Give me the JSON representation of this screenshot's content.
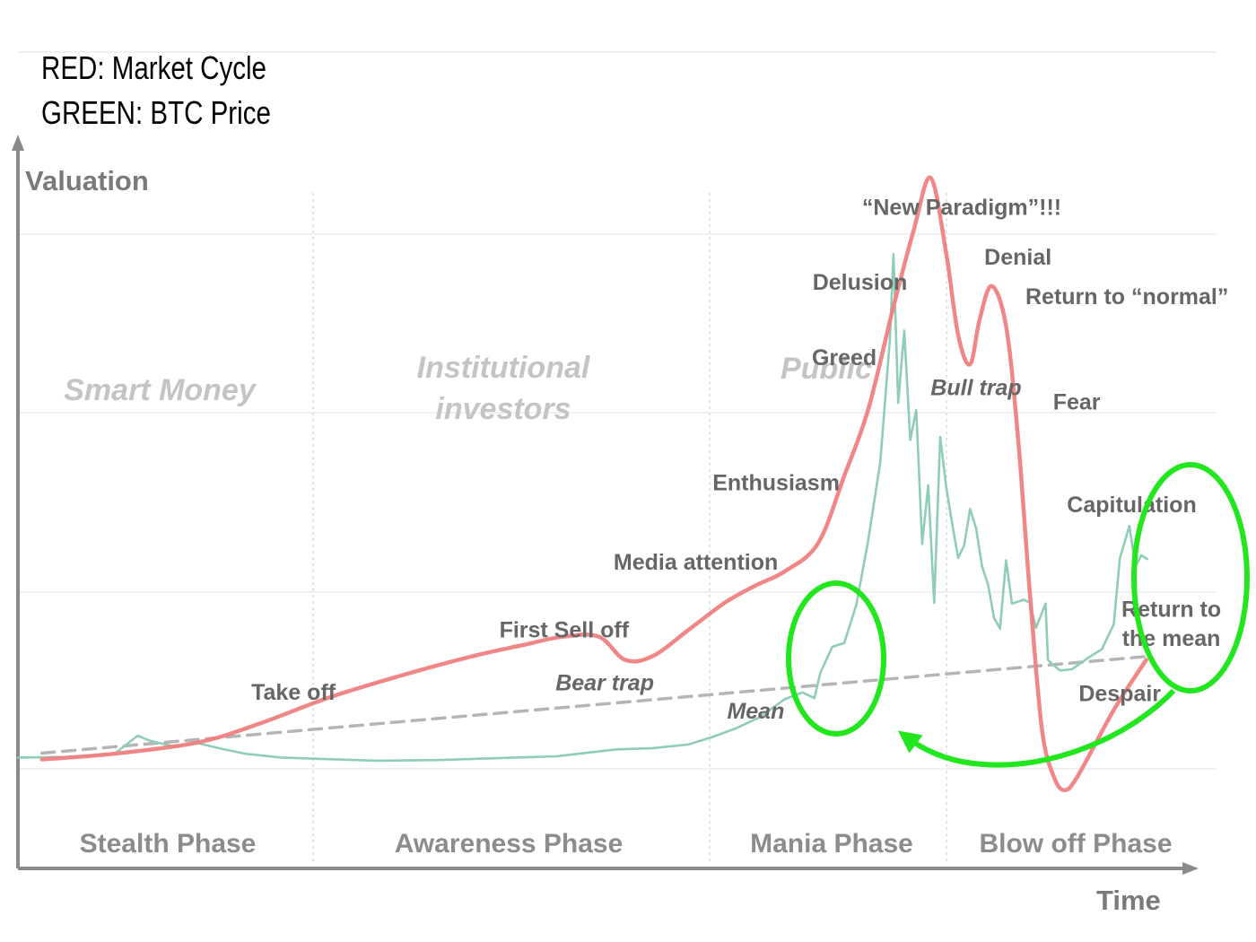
{
  "legend": {
    "red": "RED: Market Cycle",
    "green": "GREEN: BTC Price"
  },
  "chart_data": {
    "type": "line",
    "title": "",
    "ylabel": "Valuation",
    "xlabel": "Time",
    "x_range": [
      0,
      100
    ],
    "y_range": [
      0,
      100
    ],
    "grid": true,
    "colors": {
      "market_cycle": "#f08080",
      "btc_price": "#8fcdb6",
      "mean_trend": "#b5b5b5",
      "highlight": "#22e61e",
      "axis": "#8a8a8a"
    },
    "phases": [
      "Stealth Phase",
      "Awareness Phase",
      "Mania Phase",
      "Blow off Phase"
    ],
    "groups": [
      "Smart Money",
      "Institutional",
      "investors",
      "Public"
    ],
    "annotations": [
      {
        "text": "Take off",
        "x": 23,
        "y": 10,
        "italic": false
      },
      {
        "text": "First Sell off",
        "x": 45.6,
        "y": 20,
        "italic": false
      },
      {
        "text": "Bear trap",
        "x": 49,
        "y": 11.5,
        "italic": true
      },
      {
        "text": "Media attention",
        "x": 56.6,
        "y": 30.8,
        "italic": false
      },
      {
        "text": "Mean",
        "x": 61.6,
        "y": 7,
        "italic": true
      },
      {
        "text": "Enthusiasm",
        "x": 63.3,
        "y": 43.5,
        "italic": false
      },
      {
        "text": "Greed",
        "x": 69,
        "y": 63.5,
        "italic": false
      },
      {
        "text": "Delusion",
        "x": 70.3,
        "y": 75.5,
        "italic": false
      },
      {
        "text": "“New Paradigm”!!!",
        "x": 78.8,
        "y": 87.5,
        "italic": false
      },
      {
        "text": "Denial",
        "x": 83.5,
        "y": 79.5,
        "italic": false
      },
      {
        "text": "Return to “normal”",
        "x": 92.6,
        "y": 73.2,
        "italic": false
      },
      {
        "text": "Bull trap",
        "x": 80,
        "y": 58.7,
        "italic": true
      },
      {
        "text": "Fear",
        "x": 88.4,
        "y": 56.4,
        "italic": false
      },
      {
        "text": "Capitulation",
        "x": 93,
        "y": 40,
        "italic": false
      },
      {
        "text": "Return to",
        "x": 96.3,
        "y": 23.3,
        "italic": false
      },
      {
        "text": "the mean",
        "x": 96.3,
        "y": 18.6,
        "italic": false
      },
      {
        "text": "Despair",
        "x": 92,
        "y": 9.8,
        "italic": false
      }
    ],
    "series": [
      {
        "name": "Market Cycle",
        "key": "market_cycle",
        "points": [
          [
            2,
            0.5
          ],
          [
            8,
            1.4
          ],
          [
            15,
            3.2
          ],
          [
            20,
            6.1
          ],
          [
            26,
            10.4
          ],
          [
            32,
            13.9
          ],
          [
            38,
            17
          ],
          [
            42,
            18.7
          ],
          [
            45.5,
            20.1
          ],
          [
            48.5,
            20.1
          ],
          [
            50.7,
            16.4
          ],
          [
            53,
            17
          ],
          [
            56,
            21.2
          ],
          [
            59,
            25.5
          ],
          [
            61.5,
            28.2
          ],
          [
            64,
            30.5
          ],
          [
            66.8,
            35
          ],
          [
            69,
            45.8
          ],
          [
            71,
            56.4
          ],
          [
            73,
            72
          ],
          [
            74.8,
            85.1
          ],
          [
            76.2,
            93.4
          ],
          [
            77.5,
            81.4
          ],
          [
            78.5,
            68.3
          ],
          [
            79.5,
            63.6
          ],
          [
            80.3,
            70.8
          ],
          [
            81.3,
            76.1
          ],
          [
            82.5,
            69.7
          ],
          [
            83.5,
            51.9
          ],
          [
            84.5,
            26.8
          ],
          [
            85.5,
            5.3
          ],
          [
            86.5,
            -2.3
          ],
          [
            87.4,
            -4.4
          ],
          [
            88.5,
            -2.1
          ],
          [
            91.5,
            8.4
          ],
          [
            94.2,
            16.4
          ]
        ]
      },
      {
        "name": "BTC Price",
        "key": "btc_price",
        "points": [
          [
            0,
            0.8
          ],
          [
            4,
            0.9
          ],
          [
            8,
            1.3
          ],
          [
            10,
            4.3
          ],
          [
            11,
            3.5
          ],
          [
            13,
            2.6
          ],
          [
            15,
            3.1
          ],
          [
            17,
            2.2
          ],
          [
            19,
            1.4
          ],
          [
            22,
            0.8
          ],
          [
            25,
            0.6
          ],
          [
            30,
            0.3
          ],
          [
            35,
            0.4
          ],
          [
            40,
            0.7
          ],
          [
            45,
            1
          ],
          [
            50,
            2.1
          ],
          [
            53,
            2.3
          ],
          [
            56,
            2.9
          ],
          [
            58,
            4.1
          ],
          [
            60,
            5.5
          ],
          [
            62,
            7.3
          ],
          [
            64,
            10.1
          ],
          [
            65.5,
            11.2
          ],
          [
            66.5,
            10.3
          ],
          [
            67,
            14.4
          ],
          [
            68,
            18.5
          ],
          [
            69,
            19.1
          ],
          [
            70,
            25.2
          ],
          [
            71,
            35.5
          ],
          [
            72,
            48
          ],
          [
            72.8,
            67.5
          ],
          [
            73.1,
            81.2
          ],
          [
            73.5,
            57.4
          ],
          [
            74,
            69
          ],
          [
            74.5,
            51.5
          ],
          [
            75,
            56.3
          ],
          [
            75.5,
            34.9
          ],
          [
            76,
            44.3
          ],
          [
            76.5,
            25.5
          ],
          [
            77,
            52
          ],
          [
            77.5,
            44.1
          ],
          [
            78,
            38.2
          ],
          [
            78.5,
            32.7
          ],
          [
            79,
            34.7
          ],
          [
            79.5,
            40.5
          ],
          [
            80,
            37.4
          ],
          [
            80.5,
            31.3
          ],
          [
            81,
            28.4
          ],
          [
            81.5,
            23.1
          ],
          [
            82,
            21.4
          ],
          [
            82.5,
            32.3
          ],
          [
            83,
            25.4
          ],
          [
            83.5,
            25.7
          ],
          [
            84,
            26
          ],
          [
            84.5,
            25.5
          ],
          [
            85,
            21.5
          ],
          [
            85.8,
            25.4
          ],
          [
            86,
            16.4
          ],
          [
            86.5,
            15.5
          ],
          [
            87,
            14.7
          ],
          [
            88,
            14.9
          ],
          [
            89.5,
            16.9
          ],
          [
            90.5,
            18.1
          ],
          [
            91.5,
            22.1
          ],
          [
            92,
            32.6
          ],
          [
            92.8,
            37.8
          ],
          [
            93.3,
            31.3
          ],
          [
            93.8,
            33.1
          ],
          [
            94.3,
            32.5
          ]
        ]
      },
      {
        "name": "Mean",
        "key": "mean_trend",
        "points": [
          [
            2,
            1.5
          ],
          [
            94,
            16.9
          ]
        ]
      }
    ]
  }
}
